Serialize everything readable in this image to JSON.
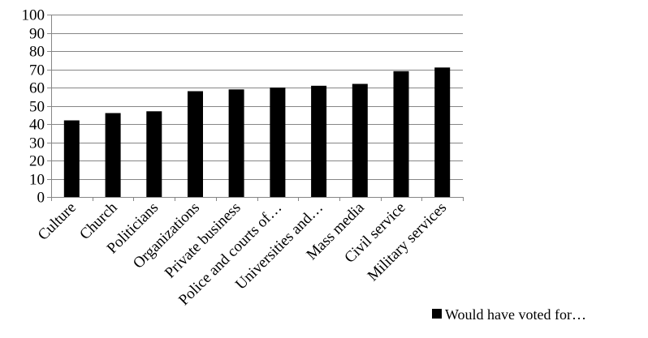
{
  "chart_data": {
    "type": "bar",
    "categories": [
      "Culture",
      "Church",
      "Politicians",
      "Organizations",
      "Private business",
      "Police and courts of…",
      "Universities and…",
      "Mass media",
      "Civil service",
      "Military services"
    ],
    "series": [
      {
        "name": "Would have voted for…",
        "values": [
          42,
          46,
          47,
          58,
          59,
          60,
          61,
          62,
          69,
          71
        ]
      }
    ],
    "ylim": [
      0,
      100
    ],
    "yticks": [
      0,
      10,
      20,
      30,
      40,
      50,
      60,
      70,
      80,
      90,
      100
    ],
    "grid": true,
    "legend_position": "bottom-right",
    "colors": {
      "bar": "#000000",
      "grid": "#868686",
      "axis": "#868686"
    }
  }
}
